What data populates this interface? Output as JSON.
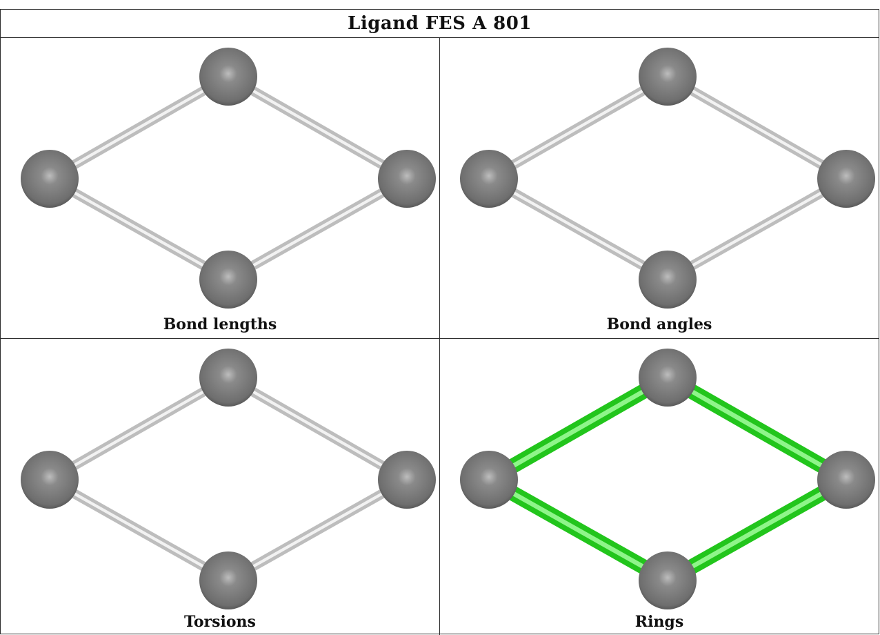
{
  "title": "Ligand FES A 801",
  "panels": [
    {
      "caption": "Bond lengths",
      "bond_color": "gray"
    },
    {
      "caption": "Bond angles",
      "bond_color": "gray"
    },
    {
      "caption": "Torsions",
      "bond_color": "gray"
    },
    {
      "caption": "Rings",
      "bond_color": "green"
    }
  ],
  "colors": {
    "atom": "#6e6e6e",
    "bond_gray": "#bdbdbd",
    "bond_green": "#22c51c",
    "border": "#2b2b2b"
  }
}
